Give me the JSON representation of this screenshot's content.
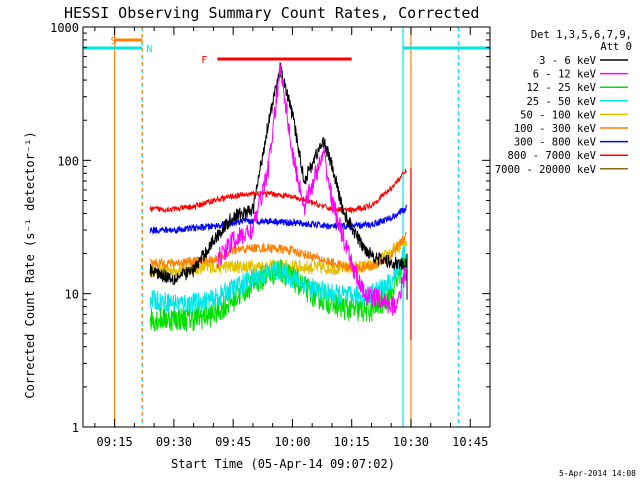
{
  "chart_data": {
    "type": "line",
    "title": "HESSI Observing Summary Count Rates, Corrected",
    "xlabel": "Start Time (05-Apr-14 09:07:02)",
    "ylabel": "Corrected Count Rate (s⁻¹ detector⁻¹)",
    "yscale": "log",
    "ylim": [
      1,
      1000
    ],
    "xlim": [
      "09:07",
      "10:50"
    ],
    "xticks": [
      "09:15",
      "09:30",
      "09:45",
      "10:00",
      "10:15",
      "10:30",
      "10:45"
    ],
    "yticks": [
      "1",
      "10",
      "100",
      "1000"
    ],
    "legend_header": [
      "Det 1,3,5,6,7,9,",
      "Att 0"
    ],
    "legend_placement": "right",
    "timestamp": "5-Apr-2014 14:08",
    "flags": [
      {
        "label": "S",
        "start": "09:15",
        "end": "09:22",
        "color": "#ff8000"
      },
      {
        "label": "N",
        "start": "09:07",
        "end": "09:22",
        "color": "#00e5e5"
      },
      {
        "label": "N",
        "start": "10:28",
        "end": "10:50",
        "color": "#00e5e5"
      },
      {
        "label": "F",
        "start": "09:41",
        "end": "10:15",
        "color": "#ff0000"
      }
    ],
    "series": [
      {
        "name": "3 - 6 keV",
        "color": "#000000",
        "x": [
          "09:24",
          "09:30",
          "09:35",
          "09:40",
          "09:45",
          "09:50",
          "09:54",
          "09:57",
          "10:00",
          "10:03",
          "10:06",
          "10:08",
          "10:10",
          "10:13",
          "10:18",
          "10:22",
          "10:26",
          "10:29"
        ],
        "values": [
          15,
          13,
          15,
          25,
          38,
          42,
          200,
          480,
          220,
          70,
          110,
          140,
          90,
          40,
          22,
          18,
          17,
          16
        ]
      },
      {
        "name": "6 - 12 keV",
        "color": "#ff00ff",
        "x": [
          "09:41",
          "09:45",
          "09:50",
          "09:54",
          "09:57",
          "10:00",
          "10:03",
          "10:06",
          "10:08",
          "10:10",
          "10:14",
          "10:18",
          "10:22",
          "10:26",
          "10:29"
        ],
        "values": [
          18,
          25,
          30,
          90,
          520,
          110,
          45,
          80,
          110,
          50,
          20,
          10,
          9,
          8,
          15
        ]
      },
      {
        "name": "12 - 25 keV",
        "color": "#00e000",
        "x": [
          "09:24",
          "09:30",
          "09:35",
          "09:40",
          "09:45",
          "09:50",
          "09:54",
          "09:57",
          "10:00",
          "10:05",
          "10:10",
          "10:15",
          "10:20",
          "10:25",
          "10:29"
        ],
        "values": [
          6.5,
          6.5,
          6.5,
          7,
          9,
          12,
          14,
          15,
          13,
          10,
          8.5,
          7.5,
          7.5,
          10,
          20
        ]
      },
      {
        "name": "25 - 50 keV",
        "color": "#00e5e5",
        "x": [
          "09:24",
          "09:30",
          "09:35",
          "09:40",
          "09:45",
          "09:50",
          "09:54",
          "09:57",
          "10:00",
          "10:05",
          "10:10",
          "10:15",
          "10:20",
          "10:25",
          "10:29"
        ],
        "values": [
          9,
          8.5,
          8.5,
          9,
          11,
          13,
          14.5,
          15,
          13,
          11,
          10,
          9.5,
          10,
          12,
          22
        ]
      },
      {
        "name": "50 - 100 keV",
        "color": "#e5c000",
        "x": [
          "09:24",
          "09:30",
          "09:40",
          "09:50",
          "10:00",
          "10:10",
          "10:20",
          "10:29"
        ],
        "values": [
          15,
          15,
          16,
          16,
          16,
          15.5,
          16,
          25
        ]
      },
      {
        "name": "100 - 300 keV",
        "color": "#ff8000",
        "x": [
          "09:24",
          "09:30",
          "09:40",
          "09:45",
          "09:50",
          "09:55",
          "10:00",
          "10:05",
          "10:10",
          "10:15",
          "10:20",
          "10:25",
          "10:29"
        ],
        "values": [
          17,
          17,
          18,
          21,
          22,
          22,
          21,
          19,
          17,
          15.5,
          16,
          19,
          28
        ]
      },
      {
        "name": "300 - 800 keV",
        "color": "#0000ff",
        "x": [
          "09:24",
          "09:30",
          "09:35",
          "09:40",
          "09:45",
          "09:50",
          "09:55",
          "10:00",
          "10:05",
          "10:10",
          "10:15",
          "10:20",
          "10:25",
          "10:29"
        ],
        "values": [
          30,
          30,
          31,
          32,
          34,
          35,
          35,
          34,
          33,
          32,
          32,
          33,
          37,
          44
        ]
      },
      {
        "name": "800 - 7000 keV",
        "color": "#ff0000",
        "x": [
          "09:24",
          "09:30",
          "09:35",
          "09:40",
          "09:45",
          "09:50",
          "09:55",
          "10:00",
          "10:05",
          "10:10",
          "10:15",
          "10:20",
          "10:25",
          "10:29"
        ],
        "values": [
          43,
          43,
          45,
          50,
          54,
          56,
          56,
          53,
          48,
          43,
          42,
          46,
          62,
          85
        ]
      },
      {
        "name": "7000 - 20000 keV",
        "color": "#8b6914",
        "x": [],
        "values": []
      }
    ]
  }
}
